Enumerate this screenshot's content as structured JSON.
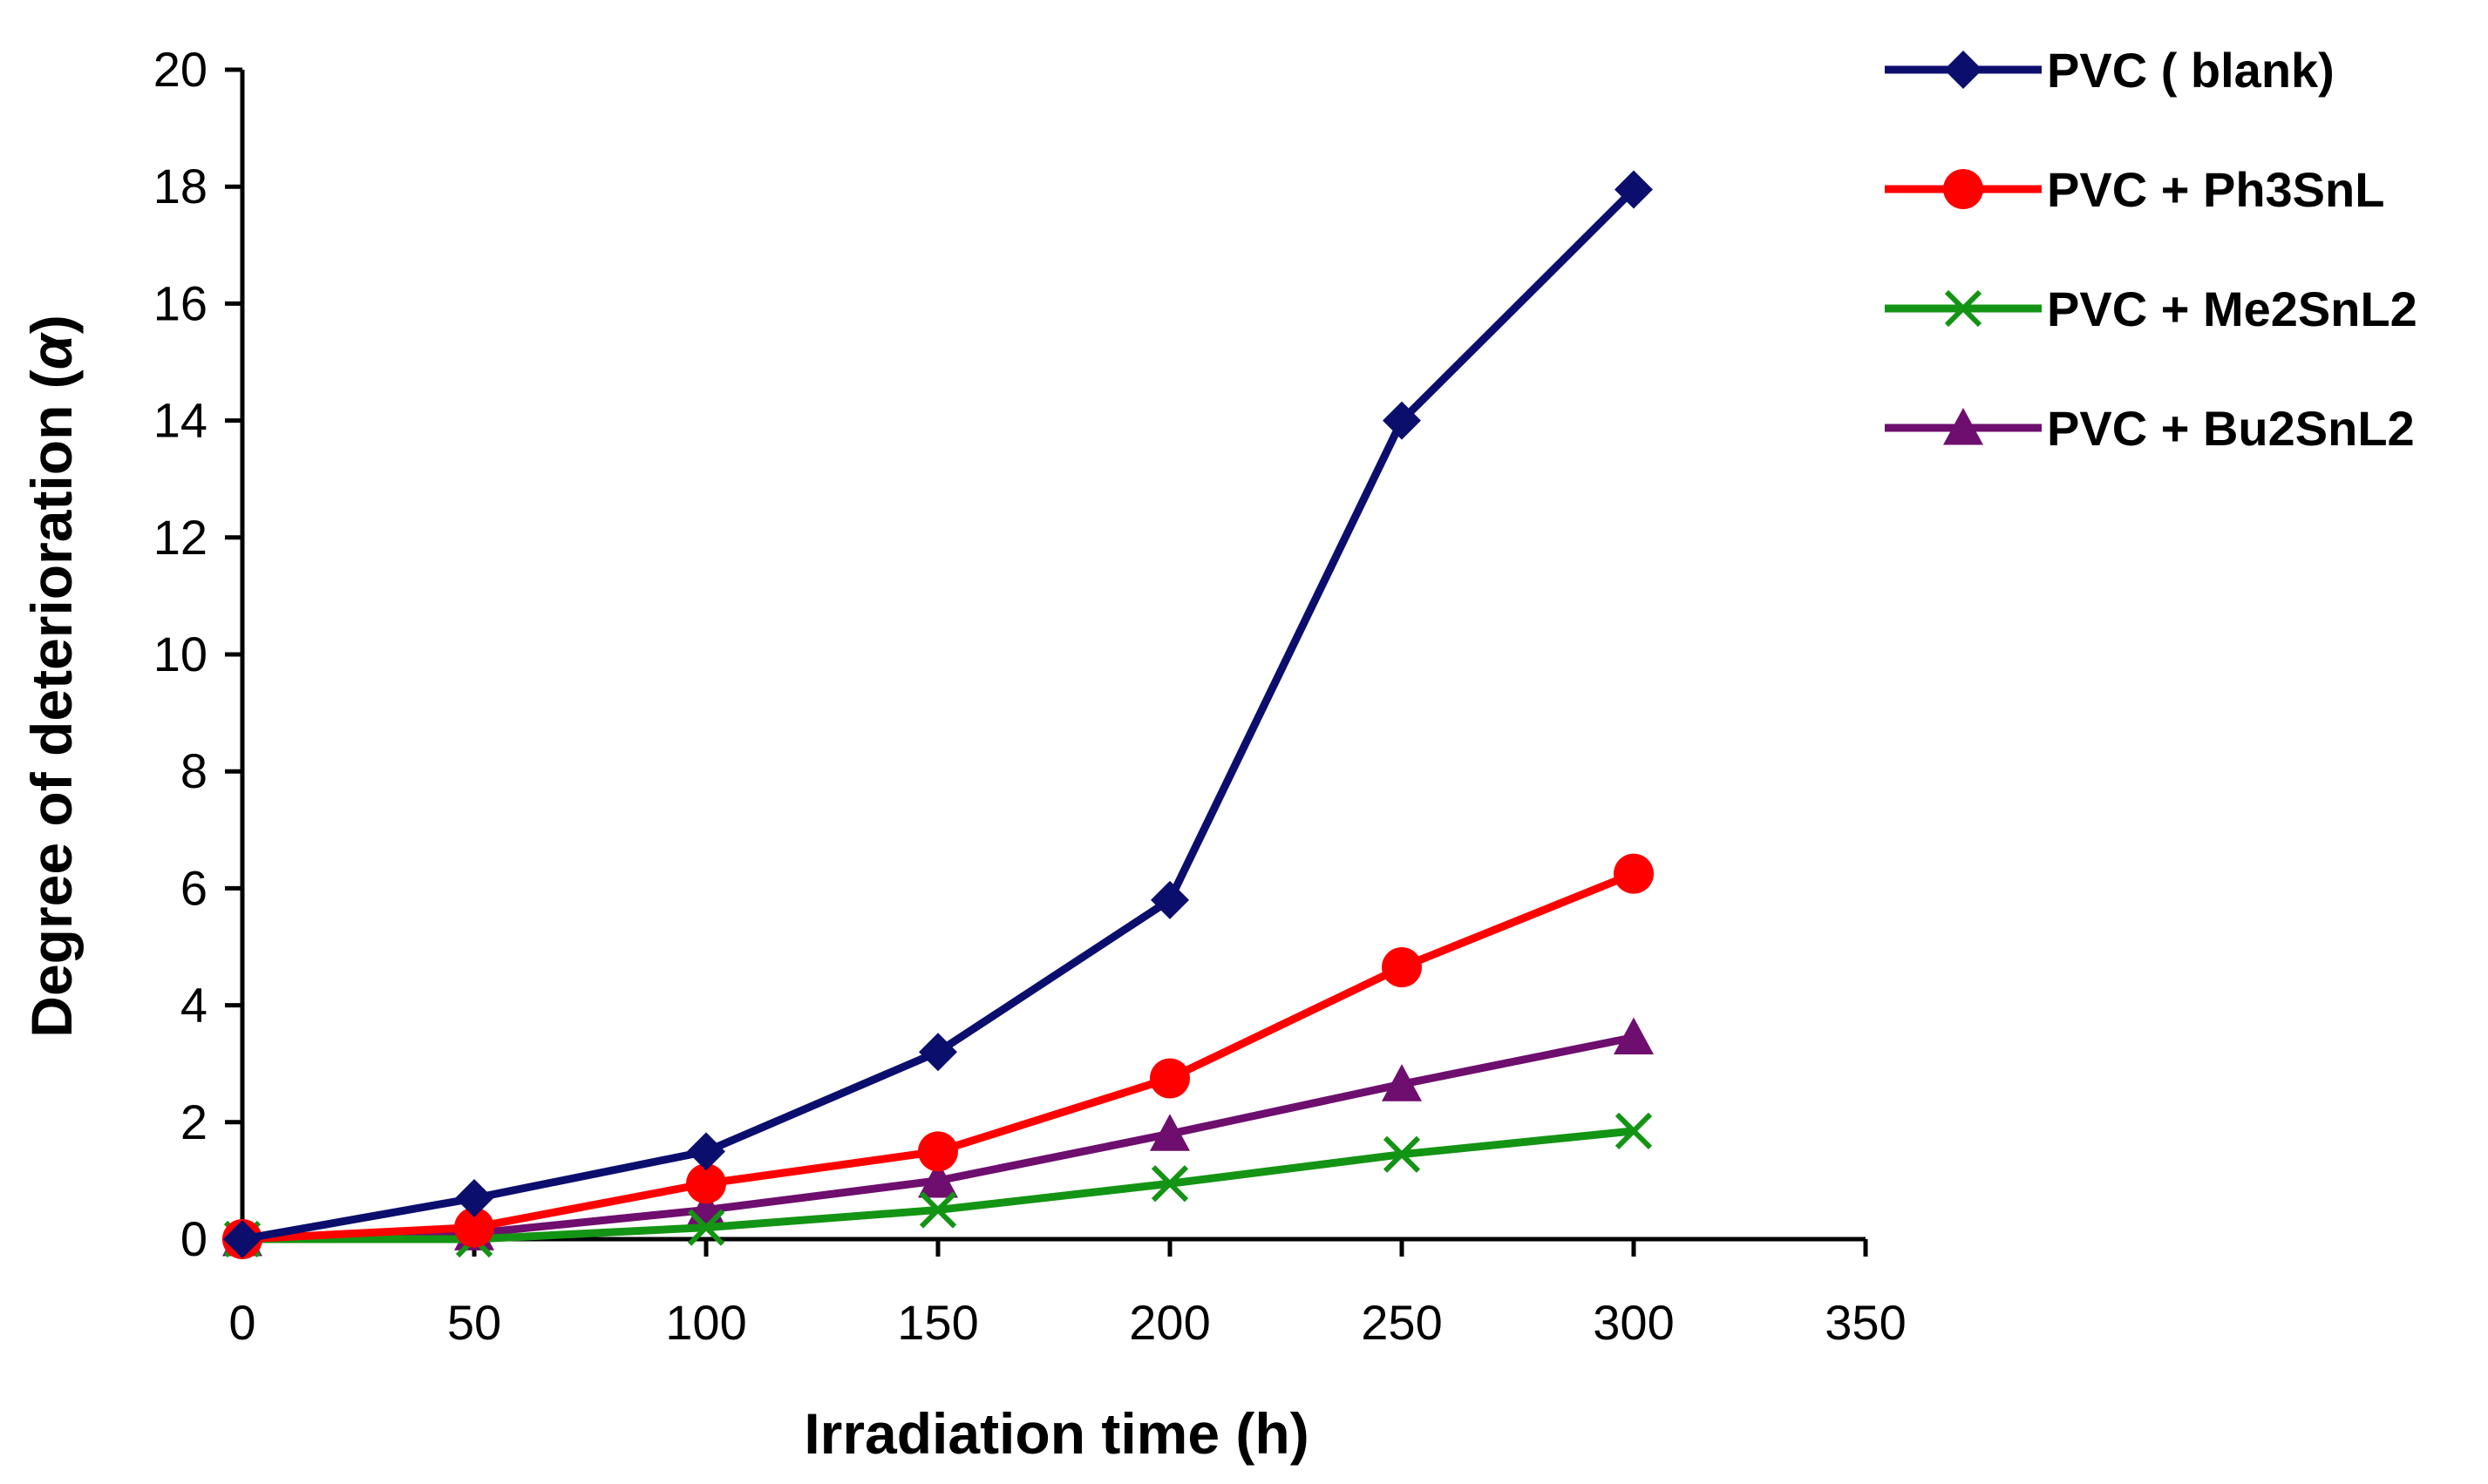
{
  "chart_data": {
    "type": "line",
    "title": "",
    "xlabel": "Irradiation time (h)",
    "ylabel_main": "Degree of deterioration (",
    "ylabel_symbol": "α",
    "ylabel_close": ")",
    "xlim": [
      0,
      350
    ],
    "ylim": [
      0,
      20
    ],
    "x_ticks": [
      0,
      50,
      100,
      150,
      200,
      250,
      300,
      350
    ],
    "y_ticks": [
      0,
      2,
      4,
      6,
      8,
      10,
      12,
      14,
      16,
      18,
      20
    ],
    "grid": false,
    "legend_position": "right",
    "x": [
      0,
      50,
      100,
      150,
      200,
      250,
      300
    ],
    "series": [
      {
        "name": "PVC ( blank)",
        "color": "#0c0e6e",
        "marker": "diamond",
        "values": [
          0,
          0.7,
          1.5,
          3.2,
          5.8,
          14.0,
          17.95
        ]
      },
      {
        "name": "PVC + Ph3SnL",
        "color": "#ff0000",
        "marker": "circle",
        "values": [
          0,
          0.2,
          0.95,
          1.5,
          2.75,
          4.65,
          6.25
        ]
      },
      {
        "name": "PVC + Me2SnL2",
        "color": "#149414",
        "marker": "x",
        "values": [
          0,
          0.0,
          0.2,
          0.5,
          0.95,
          1.45,
          1.85
        ]
      },
      {
        "name": "PVC + Bu2SnL2",
        "color": "#6e0e6e",
        "marker": "triangle",
        "values": [
          0,
          0.1,
          0.5,
          1.0,
          1.8,
          2.65,
          3.45
        ]
      }
    ]
  }
}
